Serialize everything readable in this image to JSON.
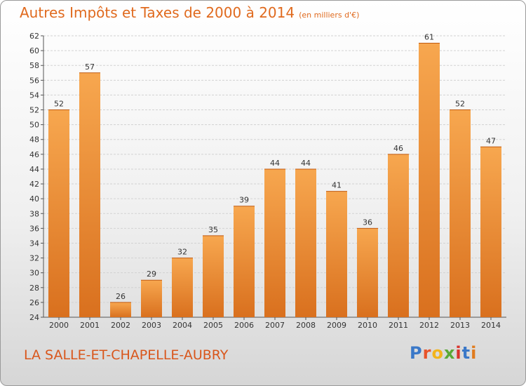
{
  "header": {
    "title": "Autres Impôts et Taxes de 2000 à 2014",
    "subtitle": "(en milliers d'€)"
  },
  "footer": {
    "commune": "LA SALLE-ET-CHAPELLE-AUBRY",
    "logo_letters": [
      "P",
      "r",
      "o",
      "x",
      "i",
      "t",
      "i"
    ],
    "logo_colors": [
      "#3a78c8",
      "#e8532a",
      "#f2b41c",
      "#5aa936",
      "#d9342b",
      "#3a78c8",
      "#e07b1e"
    ]
  },
  "colors": {
    "bar_light": "#f7a74f",
    "bar_dark": "#d9701e",
    "title": "#e06a1e"
  },
  "chart_data": {
    "type": "bar",
    "title": "Autres Impôts et Taxes de 2000 à 2014",
    "subtitle": "(en milliers d'€)",
    "categories": [
      "2000",
      "2001",
      "2002",
      "2003",
      "2004",
      "2005",
      "2006",
      "2007",
      "2008",
      "2009",
      "2010",
      "2011",
      "2012",
      "2013",
      "2014"
    ],
    "values": [
      52,
      57,
      26,
      29,
      32,
      35,
      39,
      44,
      44,
      41,
      36,
      46,
      61,
      52,
      47
    ],
    "ylim": [
      24,
      62
    ],
    "yticks": [
      24,
      26,
      28,
      30,
      32,
      34,
      36,
      38,
      40,
      42,
      44,
      46,
      48,
      50,
      52,
      54,
      56,
      58,
      60,
      62
    ],
    "grid": true,
    "data_labels": true
  }
}
